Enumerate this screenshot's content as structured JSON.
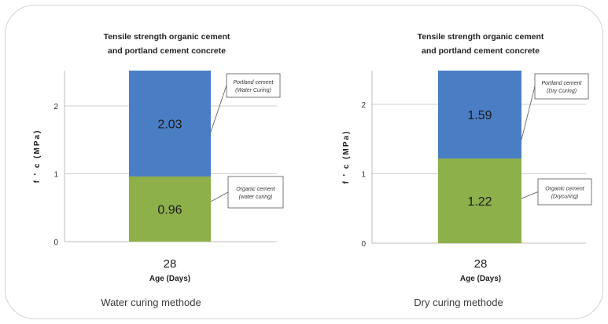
{
  "chart_data": [
    {
      "type": "bar",
      "stacked": true,
      "title": [
        "Tensile strength organic cement",
        "and portland cement concrete"
      ],
      "categories": [
        "28"
      ],
      "xlabel": "Age (Days)",
      "ylabel": "f ' c  (MPa)",
      "yticks": [
        0,
        1,
        2
      ],
      "ylim": [
        0,
        2.5
      ],
      "grid": true,
      "series": [
        {
          "name": [
            "Organic cement",
            "(water curing)"
          ],
          "values": [
            0.96
          ],
          "color": "#8db04a"
        },
        {
          "name": [
            "Portland cement",
            "(Water Curing)"
          ],
          "values": [
            2.03
          ],
          "color": "#4a7ec4"
        }
      ],
      "caption": "Water curing methode"
    },
    {
      "type": "bar",
      "stacked": true,
      "title": [
        "Tensile strength organic cement",
        "and portland cement concrete"
      ],
      "categories": [
        "28"
      ],
      "xlabel": "Age (Days)",
      "ylabel": "f ' c  (MPa)",
      "yticks": [
        0,
        1,
        2
      ],
      "ylim": [
        0,
        2.5
      ],
      "grid": true,
      "series": [
        {
          "name": [
            "Organic cement",
            "(Drycuring)"
          ],
          "values": [
            1.22
          ],
          "color": "#8db04a"
        },
        {
          "name": [
            "Portland cement",
            "(Dry Curing)"
          ],
          "values": [
            1.59
          ],
          "color": "#4a7ec4"
        }
      ],
      "caption": "Dry curing methode"
    }
  ]
}
